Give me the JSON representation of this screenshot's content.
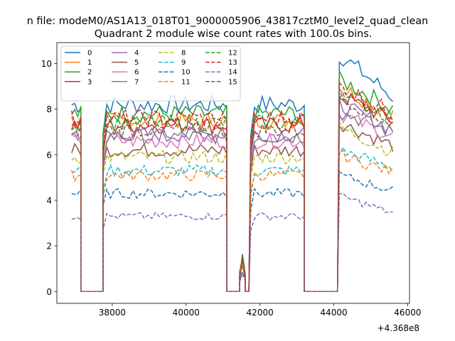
{
  "chart_data": {
    "type": "line",
    "suptitle": "n file: modeM0/AS1A13_018T01_9000005906_43817cztM0_level2_quad_clean",
    "title": "Quadrant 2 module wise count rates with 100.0s bins.",
    "xlabel": "",
    "ylabel": "",
    "x_offset_label": "+4.368e8",
    "xlim": [
      36500,
      46050
    ],
    "ylim": [
      -0.52,
      10.92
    ],
    "x_ticks": [
      38000,
      40000,
      42000,
      44000,
      46000
    ],
    "x_tick_labels": [
      "38000",
      "40000",
      "42000",
      "44000",
      "46000"
    ],
    "y_ticks": [
      0,
      2,
      4,
      6,
      8,
      10
    ],
    "y_tick_labels": [
      "0",
      "2",
      "4",
      "6",
      "8",
      "10"
    ],
    "grid": false,
    "legend_position": "top-left",
    "segments": [
      {
        "x0": 36900,
        "x1": 37150,
        "n": 4
      },
      {
        "x0": 37150,
        "x1": 37750,
        "n": 7,
        "zero": true
      },
      {
        "x0": 37750,
        "x1": 41100,
        "n": 34
      },
      {
        "x0": 41100,
        "x1": 41450,
        "n": 5,
        "zero": true
      },
      {
        "x0": 41450,
        "x1": 41600,
        "n": 3,
        "dip": true
      },
      {
        "x0": 41600,
        "x1": 41700,
        "n": 2,
        "zero": true
      },
      {
        "x0": 41750,
        "x1": 43200,
        "n": 15
      },
      {
        "x0": 43200,
        "x1": 44100,
        "n": 10,
        "zero": true
      },
      {
        "x0": 44150,
        "x1": 45600,
        "n": 15
      }
    ],
    "series": [
      {
        "name": "0",
        "color": "#1f77b4",
        "dash": false,
        "level": 8.2,
        "peak3": 10.4
      },
      {
        "name": "1",
        "color": "#ff7f0e",
        "dash": false,
        "level": 7.5,
        "peak3": 9.0
      },
      {
        "name": "2",
        "color": "#2ca02c",
        "dash": false,
        "level": 7.8,
        "peak3": 9.3
      },
      {
        "name": "3",
        "color": "#d62728",
        "dash": false,
        "level": 7.3,
        "peak3": 8.6
      },
      {
        "name": "4",
        "color": "#9467bd",
        "dash": false,
        "level": 6.9,
        "peak3": 8.2
      },
      {
        "name": "5",
        "color": "#8c564b",
        "dash": false,
        "level": 6.2,
        "peak3": 7.4
      },
      {
        "name": "6",
        "color": "#e377c2",
        "dash": false,
        "level": 6.6,
        "peak3": 7.8
      },
      {
        "name": "7",
        "color": "#7f7f7f",
        "dash": false,
        "level": 6.8,
        "peak3": 7.9
      },
      {
        "name": "8",
        "color": "#bcbd22",
        "dash": true,
        "level": 5.9,
        "peak3": 7.2
      },
      {
        "name": "9",
        "color": "#17becf",
        "dash": true,
        "level": 5.3,
        "peak3": 6.2
      },
      {
        "name": "10",
        "color": "#1f77b4",
        "dash": true,
        "level": 4.3,
        "peak3": 5.1
      },
      {
        "name": "11",
        "color": "#ff7f0e",
        "dash": true,
        "level": 5.1,
        "peak3": 6.0
      },
      {
        "name": "12",
        "color": "#2ca02c",
        "dash": true,
        "level": 7.4,
        "peak3": 8.8
      },
      {
        "name": "13",
        "color": "#d62728",
        "dash": true,
        "level": 7.6,
        "peak3": 9.0
      },
      {
        "name": "14",
        "color": "#9467bd",
        "dash": true,
        "level": 3.3,
        "peak3": 4.2
      },
      {
        "name": "15",
        "color": "#8c564b",
        "dash": true,
        "level": 7.1,
        "peak3": 8.6
      }
    ]
  }
}
